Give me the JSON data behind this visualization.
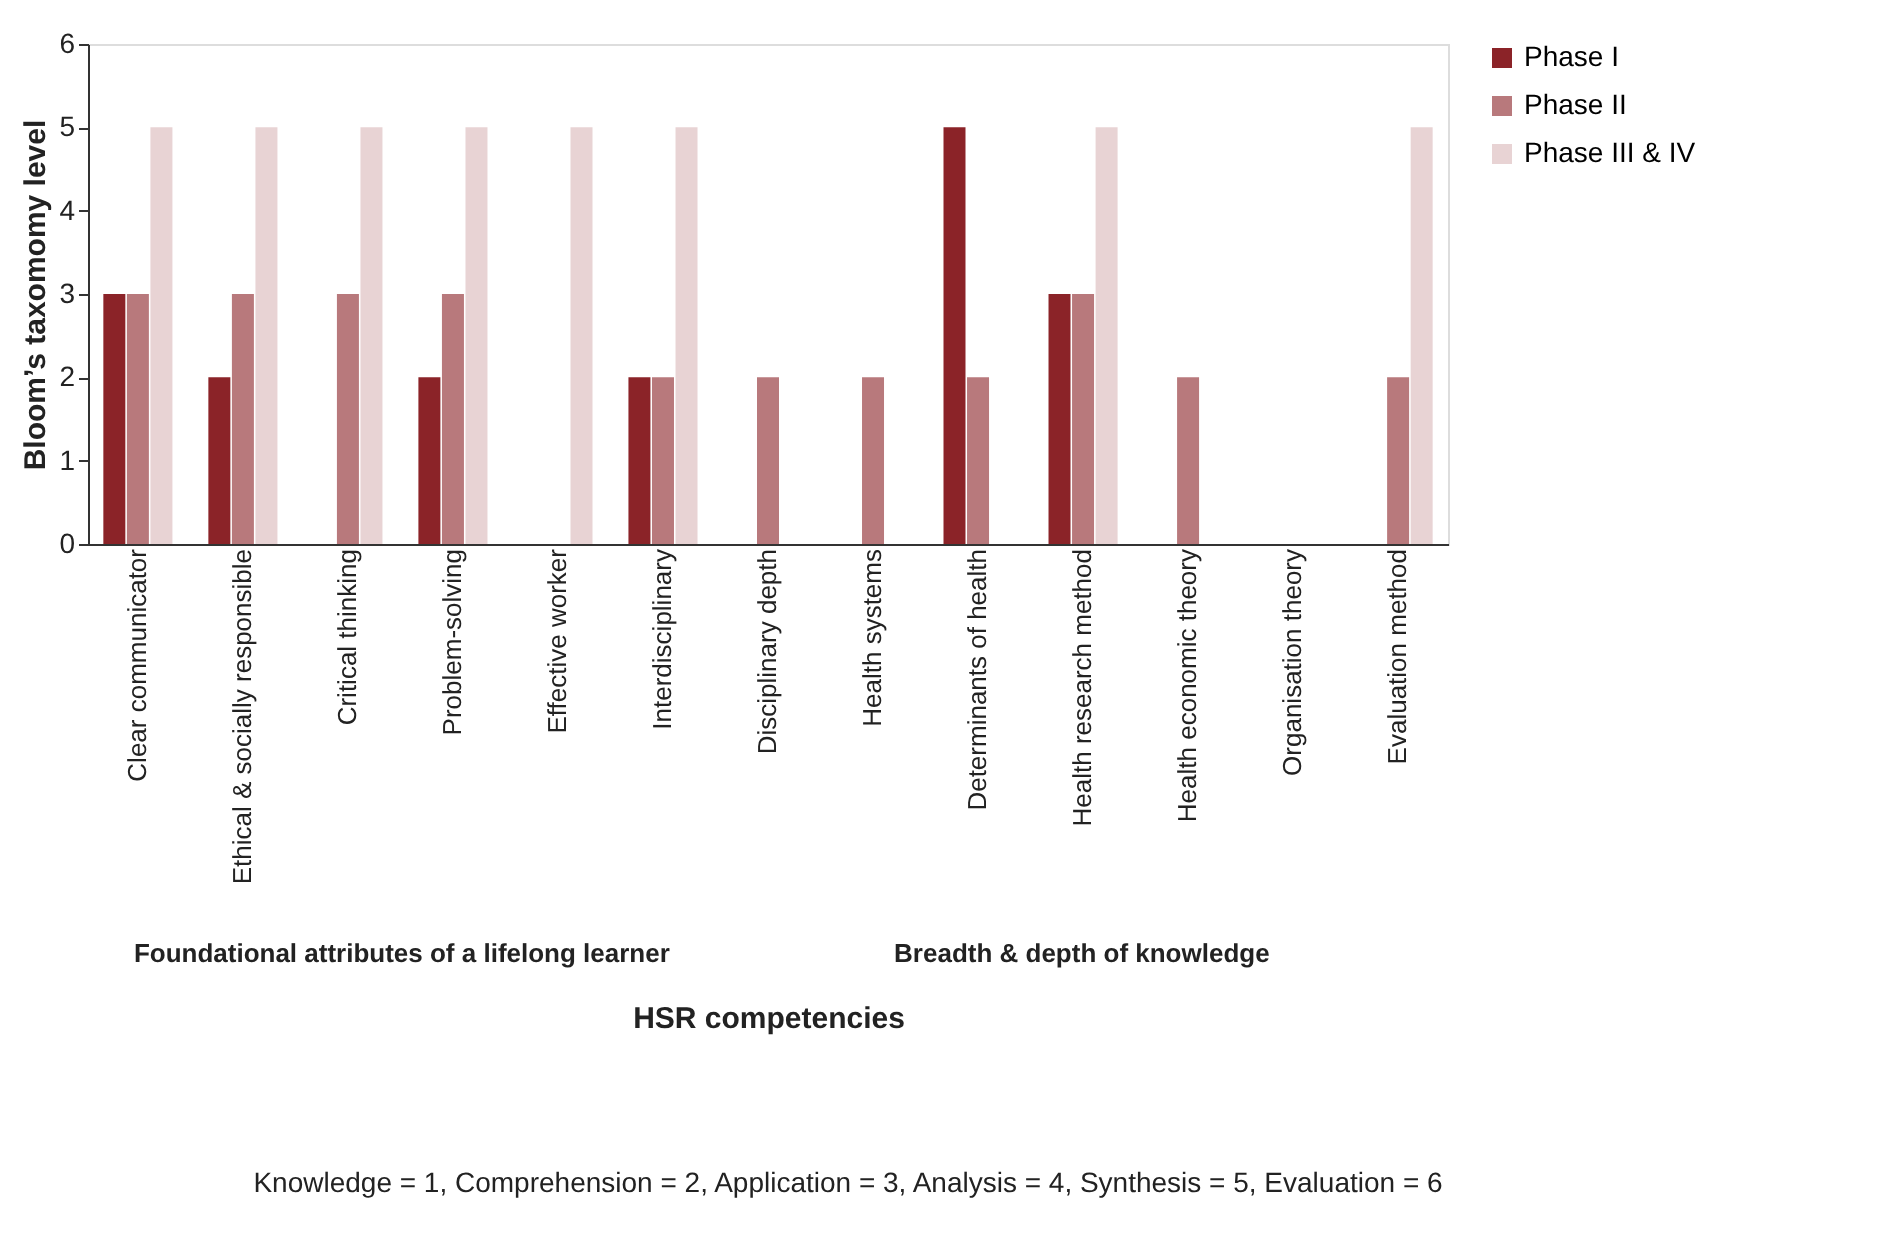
{
  "chart_data": {
    "type": "bar",
    "ylabel": "Bloom’s taxomomy level",
    "xlabel": "HSR competencies",
    "categories": [
      "Clear communicator",
      "Ethical & socially responsible",
      "Critical thinking",
      "Problem-solving",
      "Effective worker",
      "Interdisciplinary",
      "Disciplinary depth",
      "Health systems",
      "Determinants of health",
      "Health research method",
      "Health economic theory",
      "Organisation theory",
      "Evaluation method"
    ],
    "series": [
      {
        "name": "Phase I",
        "color": "#8b2328",
        "values": [
          3,
          2,
          null,
          2,
          null,
          2,
          null,
          null,
          5,
          3,
          null,
          null,
          null
        ]
      },
      {
        "name": "Phase II",
        "color": "#b8797c",
        "values": [
          3,
          3,
          3,
          3,
          null,
          2,
          2,
          2,
          2,
          3,
          2,
          null,
          2
        ]
      },
      {
        "name": "Phase III & IV",
        "color": "#e8d3d4",
        "values": [
          5,
          5,
          5,
          5,
          5,
          5,
          null,
          null,
          null,
          5,
          null,
          null,
          5
        ]
      }
    ],
    "ylim": [
      0,
      6
    ],
    "yticks": [
      0,
      1,
      2,
      3,
      4,
      5,
      6
    ],
    "grid": false,
    "legend": "right",
    "annotations": [
      "Foundational attributes of a lifelong learner",
      "Breadth & depth of knowledge",
      "Knowledge = 1, Comprehension = 2, Application = 3, Analysis = 4, Synthesis = 5, Evaluation = 6"
    ]
  }
}
